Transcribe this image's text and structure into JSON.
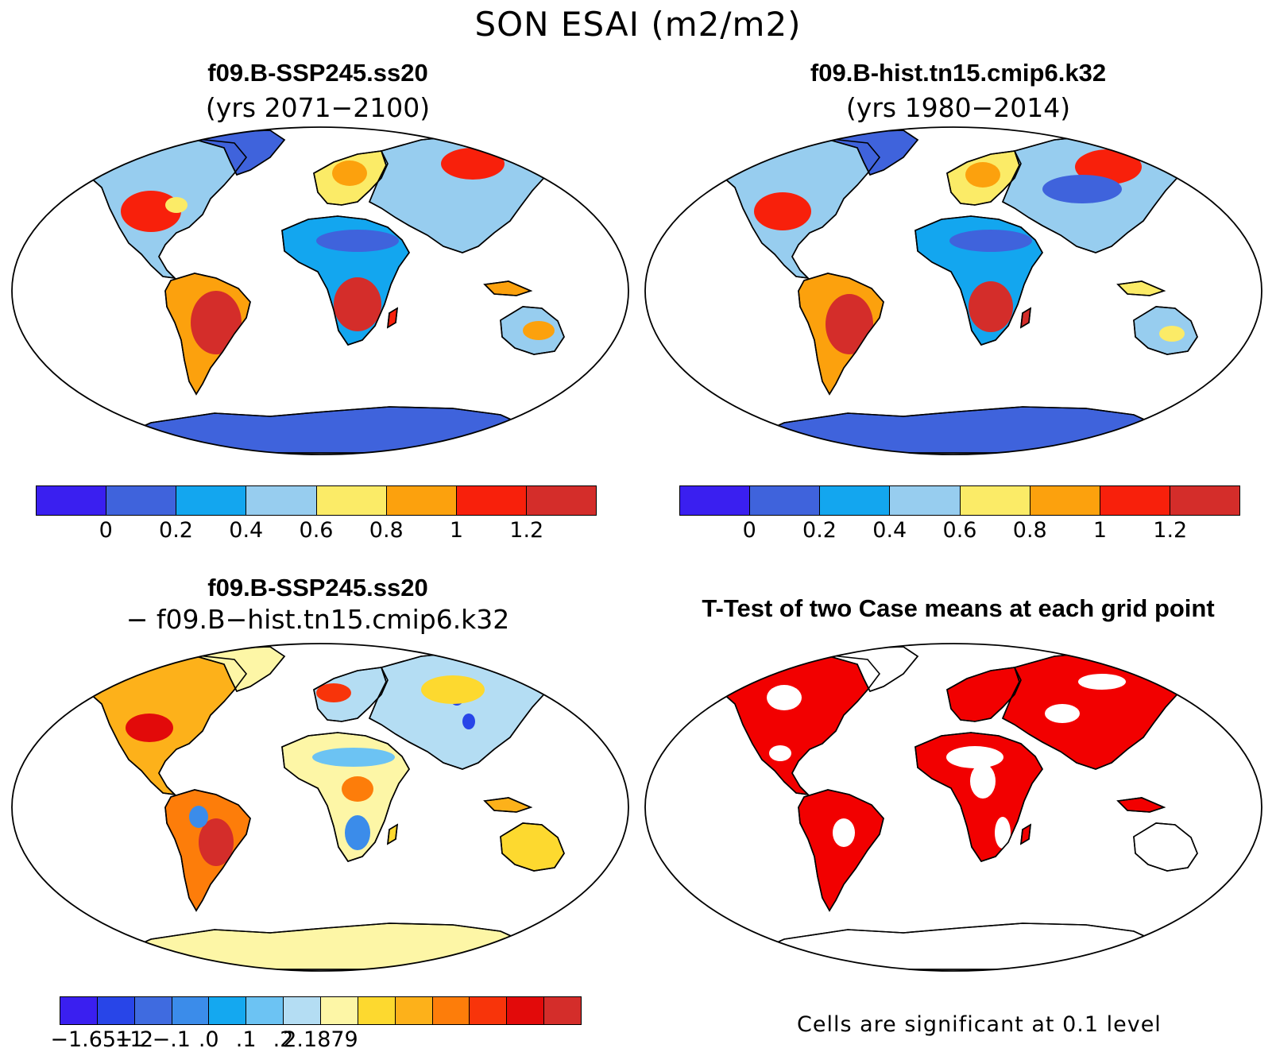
{
  "title": "SON ESAI (m2/m2)",
  "panels": [
    {
      "title": "f09.B-SSP245.ss20",
      "subtitle": "(yrs 2071−2100)"
    },
    {
      "title": "f09.B-hist.tn15.cmip6.k32",
      "subtitle": "(yrs 1980−2014)"
    },
    {
      "title": "f09.B-SSP245.ss20",
      "subtitle": "− f09.B−hist.tn15.cmip6.k32"
    },
    {
      "title": "T-Test of two Case means at each grid point",
      "subtitle": ""
    }
  ],
  "colorbar_abs": {
    "colors": [
      "#3a1ff0",
      "#3f63dc",
      "#13a6ef",
      "#97cdef",
      "#fbeb67",
      "#fca10d",
      "#f8200b",
      "#d42d2a"
    ],
    "labels": [
      "0",
      "0.2",
      "0.4",
      "0.6",
      "0.8",
      "1",
      "1.2"
    ]
  },
  "colorbar_diff": {
    "colors": [
      "#3a1ff0",
      "#2845e8",
      "#3f6be0",
      "#3b8cea",
      "#14a8f0",
      "#6cc3f3",
      "#b4ddf3",
      "#fdf6a6",
      "#fdd92f",
      "#fdb11a",
      "#fd7d0a",
      "#f8340a",
      "#e20a0a",
      "#d42d2a"
    ],
    "labels": [
      "−1.6511",
      "−.2",
      "−.1",
      ".0",
      ".1",
      ".2",
      "2.1879"
    ]
  },
  "significance_note": "Cells are significant at 0.1 level",
  "significance_color": "#f20000"
}
